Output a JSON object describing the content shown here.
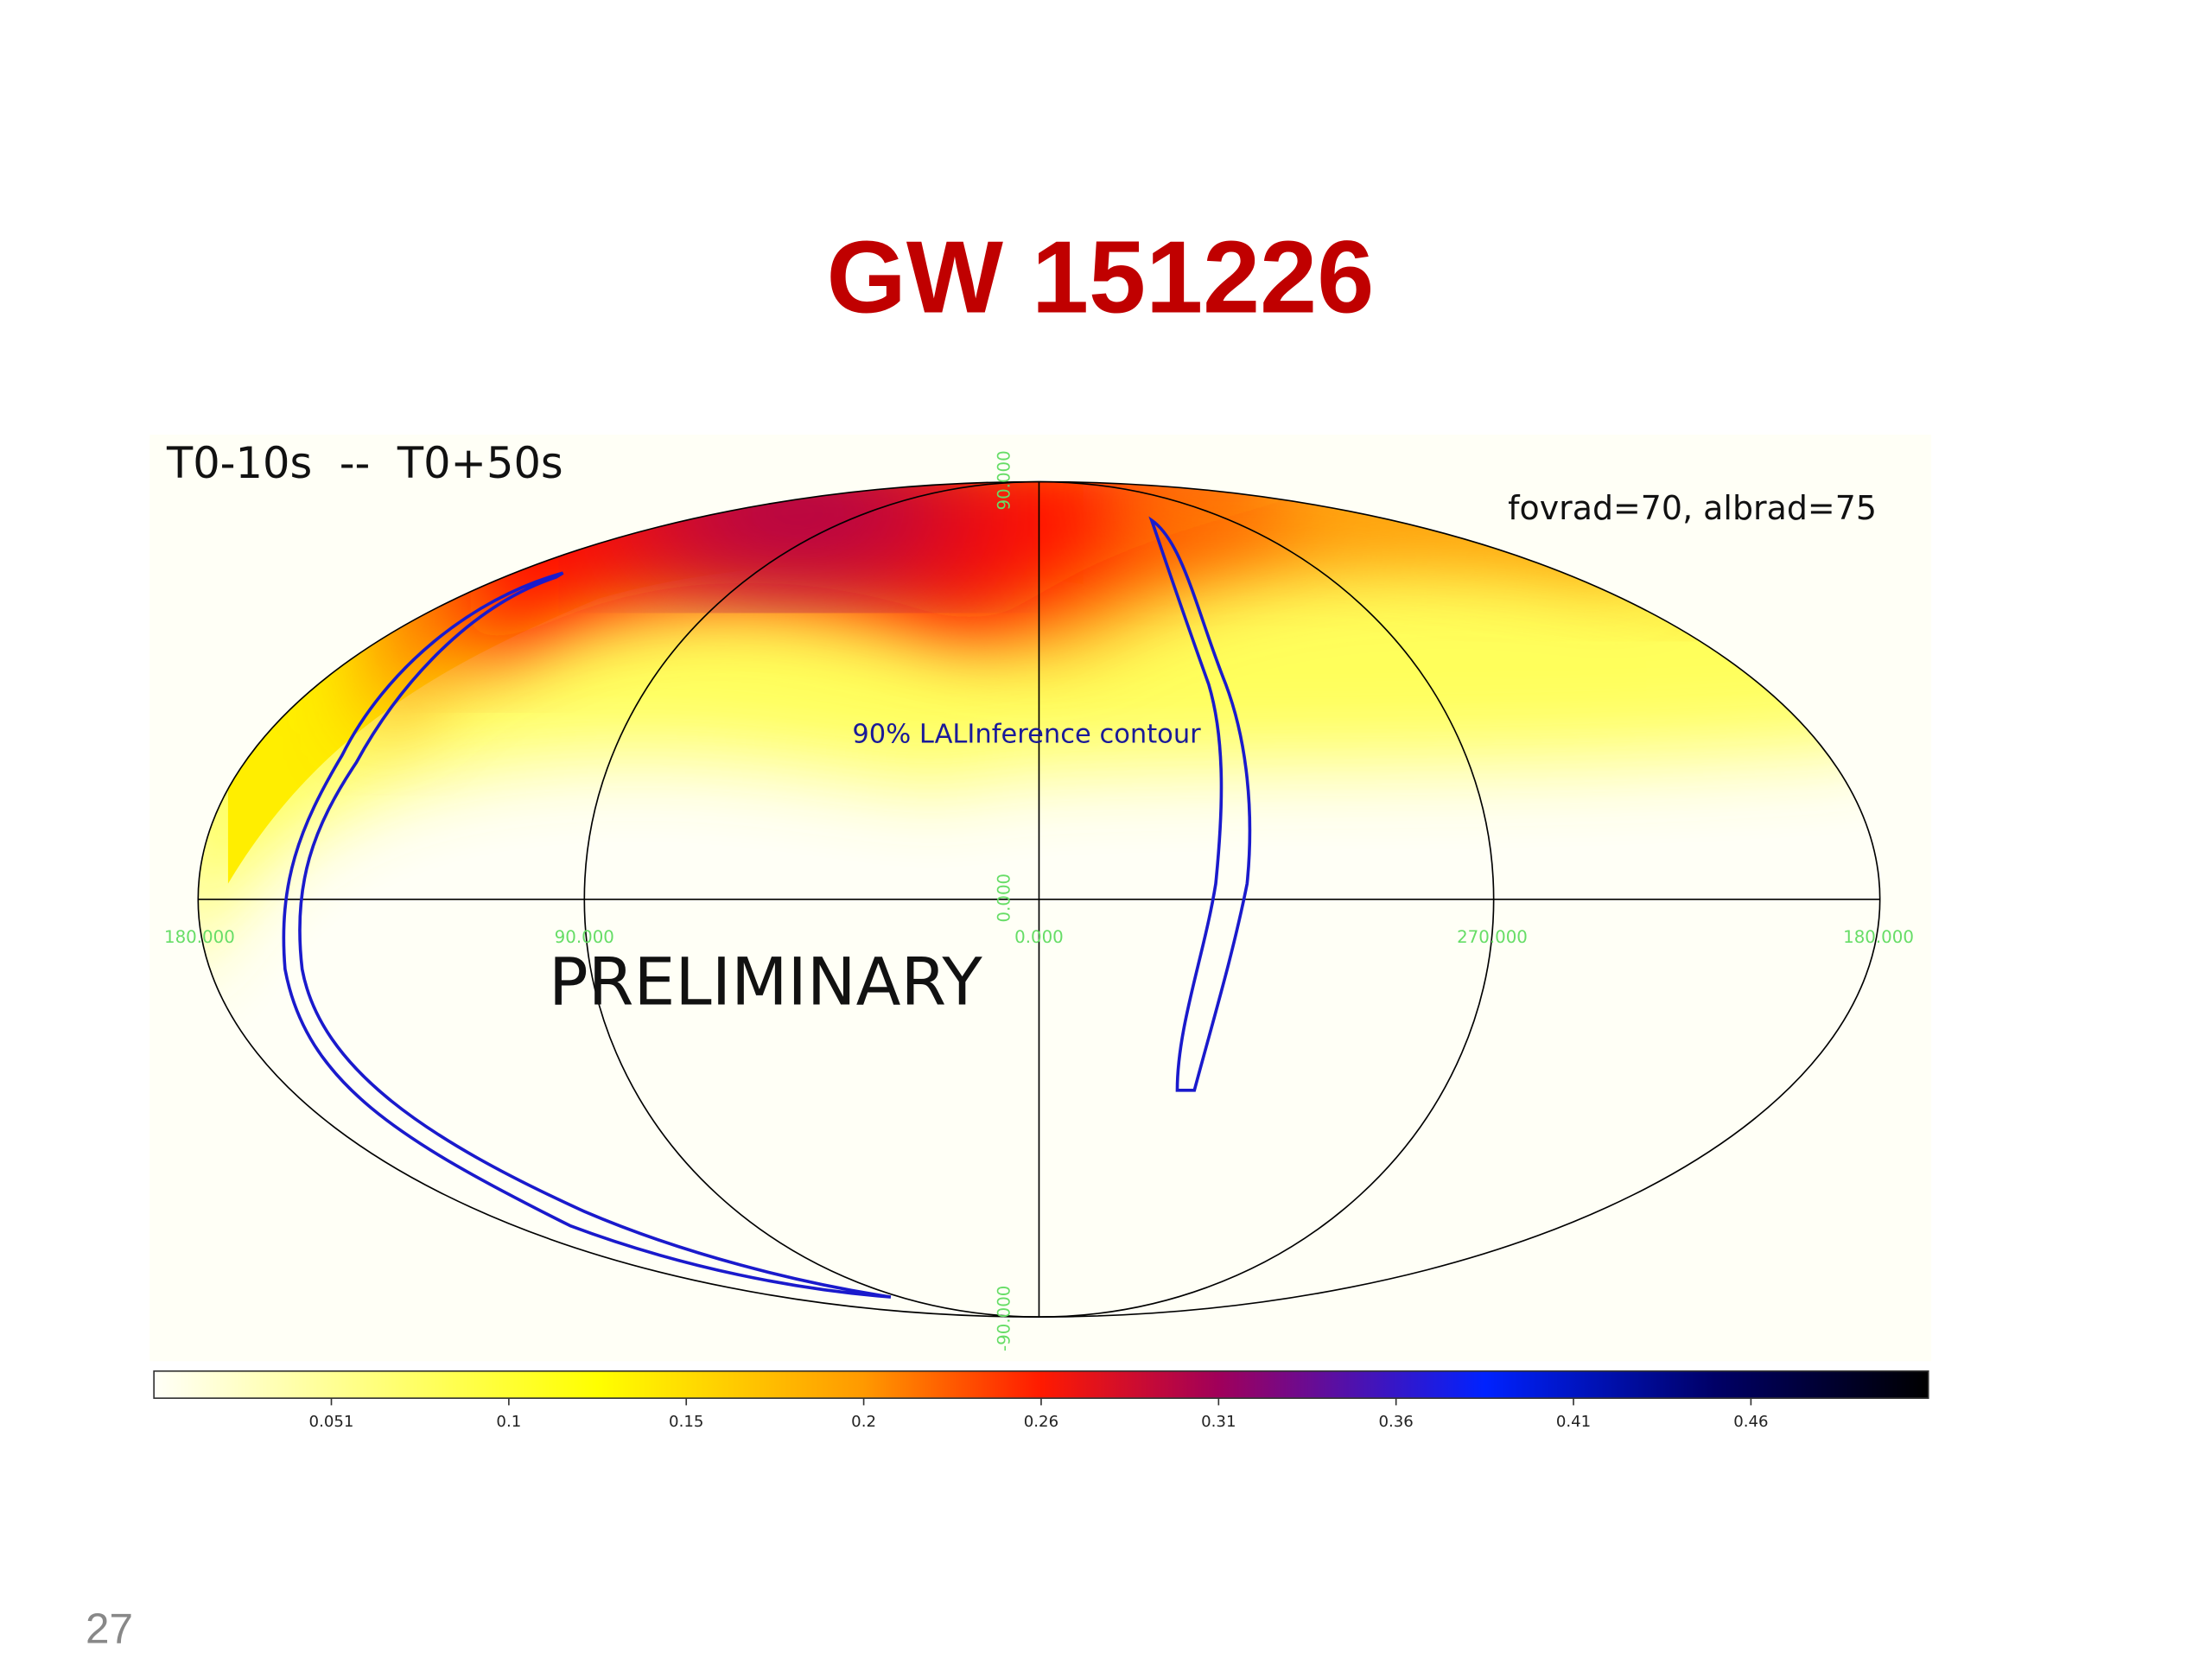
{
  "title": "GW 151226",
  "time_window": "T0-10s  --  T0+50s",
  "parameters": "fovrad=70, albrad=75",
  "contour_label": "90% LALInference contour",
  "watermark": "PRELIMINARY",
  "map": {
    "longitude_labels": [
      "180.000",
      "90.000",
      "0.000",
      "270.000",
      "180.000"
    ],
    "latitude_labels": [
      "90.000",
      "0.000",
      "-90.000"
    ]
  },
  "colorbar": {
    "range": [
      0,
      0.51
    ],
    "ticks": [
      {
        "value": 0.051,
        "label": "0.051"
      },
      {
        "value": 0.102,
        "label": "0.1"
      },
      {
        "value": 0.153,
        "label": "0.15"
      },
      {
        "value": 0.204,
        "label": "0.2"
      },
      {
        "value": 0.255,
        "label": "0.26"
      },
      {
        "value": 0.306,
        "label": "0.31"
      },
      {
        "value": 0.357,
        "label": "0.36"
      },
      {
        "value": 0.408,
        "label": "0.41"
      },
      {
        "value": 0.459,
        "label": "0.46"
      }
    ]
  },
  "page_number": "27"
}
